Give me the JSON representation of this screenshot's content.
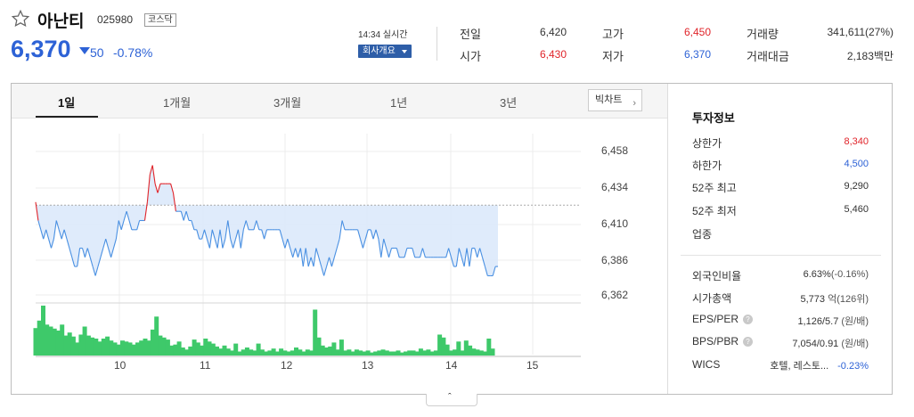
{
  "stock": {
    "name": "아난티",
    "code": "025980",
    "market": "코스닥",
    "price": "6,370",
    "change": "50",
    "change_rate": "-0.78%",
    "time": "14:34 실시간",
    "company_button": "회사개요"
  },
  "quote": {
    "prev_close_label": "전일",
    "prev_close": "6,420",
    "high_label": "고가",
    "high": "6,450",
    "volume_label": "거래량",
    "volume": "341,611(27%)",
    "open_label": "시가",
    "open": "6,430",
    "low_label": "저가",
    "low": "6,370",
    "amount_label": "거래대금",
    "amount": "2,183백만"
  },
  "tabs": [
    "1일",
    "1개월",
    "3개월",
    "1년",
    "3년"
  ],
  "big_chart_label": "빅차트",
  "chart_data": {
    "type": "line",
    "y_ticks": [
      "6,458",
      "6,434",
      "6,410",
      "6,386",
      "6,362"
    ],
    "x_ticks": [
      "10",
      "11",
      "12",
      "13",
      "14",
      "15"
    ],
    "ylim": [
      6358,
      6462
    ],
    "prev_close": 6420,
    "price_series": [
      6422,
      6410,
      6404,
      6398,
      6404,
      6398,
      6392,
      6398,
      6410,
      6404,
      6398,
      6404,
      6398,
      6392,
      6386,
      6380,
      6380,
      6392,
      6392,
      6386,
      6392,
      6386,
      6380,
      6374,
      6380,
      6386,
      6392,
      6398,
      6392,
      6386,
      6392,
      6398,
      6410,
      6404,
      6410,
      6416,
      6410,
      6404,
      6404,
      6404,
      6410,
      6410,
      6410,
      6422,
      6440,
      6446,
      6434,
      6428,
      6434,
      6434,
      6434,
      6434,
      6434,
      6428,
      6416,
      6416,
      6416,
      6410,
      6416,
      6410,
      6410,
      6404,
      6404,
      6398,
      6398,
      6404,
      6398,
      6392,
      6404,
      6398,
      6392,
      6404,
      6392,
      6398,
      6410,
      6398,
      6392,
      6398,
      6404,
      6392,
      6404,
      6410,
      6404,
      6404,
      6404,
      6410,
      6404,
      6404,
      6398,
      6404,
      6404,
      6404,
      6404,
      6404,
      6404,
      6398,
      6392,
      6398,
      6392,
      6386,
      6392,
      6386,
      6392,
      6380,
      6392,
      6380,
      6386,
      6380,
      6392,
      6386,
      6380,
      6374,
      6380,
      6386,
      6380,
      6386,
      6392,
      6398,
      6410,
      6404,
      6404,
      6404,
      6404,
      6404,
      6404,
      6398,
      6392,
      6398,
      6404,
      6404,
      6398,
      6404,
      6398,
      6386,
      6398,
      6392,
      6386,
      6392,
      6392,
      6392,
      6386,
      6386,
      6386,
      6392,
      6392,
      6392,
      6386,
      6386,
      6386,
      6392,
      6386,
      6386,
      6386,
      6386,
      6386,
      6386,
      6386,
      6386,
      6386,
      6392,
      6386,
      6380,
      6380,
      6392,
      6386,
      6380,
      6392,
      6380,
      6392,
      6392,
      6386,
      6392,
      6386,
      6380,
      6374,
      6374,
      6374,
      6380,
      6380
    ],
    "volume_series": [
      55,
      70,
      100,
      62,
      58,
      54,
      50,
      62,
      40,
      46,
      38,
      26,
      42,
      58,
      40,
      36,
      34,
      28,
      34,
      38,
      30,
      26,
      22,
      30,
      28,
      26,
      22,
      26,
      30,
      34,
      30,
      52,
      78,
      40,
      36,
      32,
      20,
      22,
      28,
      16,
      12,
      18,
      32,
      26,
      20,
      34,
      28,
      24,
      18,
      14,
      20,
      14,
      10,
      24,
      8,
      12,
      16,
      12,
      10,
      24,
      12,
      8,
      10,
      14,
      8,
      14,
      10,
      8,
      10,
      16,
      12,
      8,
      12,
      10,
      92,
      36,
      20,
      16,
      18,
      26,
      12,
      32,
      10,
      12,
      8,
      12,
      10,
      8,
      10,
      6,
      8,
      10,
      12,
      10,
      8,
      8,
      10,
      6,
      8,
      10,
      10,
      8,
      14,
      10,
      12,
      8,
      10,
      42,
      36,
      22,
      10,
      12,
      28,
      10,
      30,
      20,
      14,
      12,
      10,
      8,
      34,
      14
    ]
  },
  "investment": {
    "title": "투자정보",
    "items": [
      {
        "label": "상한가",
        "value": "8,340"
      },
      {
        "label": "하한가",
        "value": "4,500"
      },
      {
        "label": "52주 최고",
        "value": "9,290"
      },
      {
        "label": "52주 최저",
        "value": "5,460"
      },
      {
        "label": "업종",
        "value": ""
      }
    ],
    "foreign_label": "외국인비율",
    "foreign_value": "6.63%",
    "foreign_change": "(-0.16%)",
    "mktcap_label": "시가총액",
    "mktcap_value": "5,773",
    "mktcap_unit": "억(126위)",
    "eps_label": "EPS/PER",
    "eps_value": "1,126/5.7",
    "eps_unit": "(원/배)",
    "bps_label": "BPS/PBR",
    "bps_value": "7,054/0.91",
    "bps_unit": "(원/배)",
    "wics_label": "WICS",
    "wics_value": "호텔, 레스토...",
    "wics_rate": "-0.23%"
  },
  "icons": {
    "favorite": "star-outline-icon",
    "down": "down-triangle-icon",
    "help": "question-circle-icon",
    "collapse": "chevron-up-icon"
  },
  "colors": {
    "up": "#e0242a",
    "down": "#2d62d6",
    "volume": "#3ec96a"
  }
}
